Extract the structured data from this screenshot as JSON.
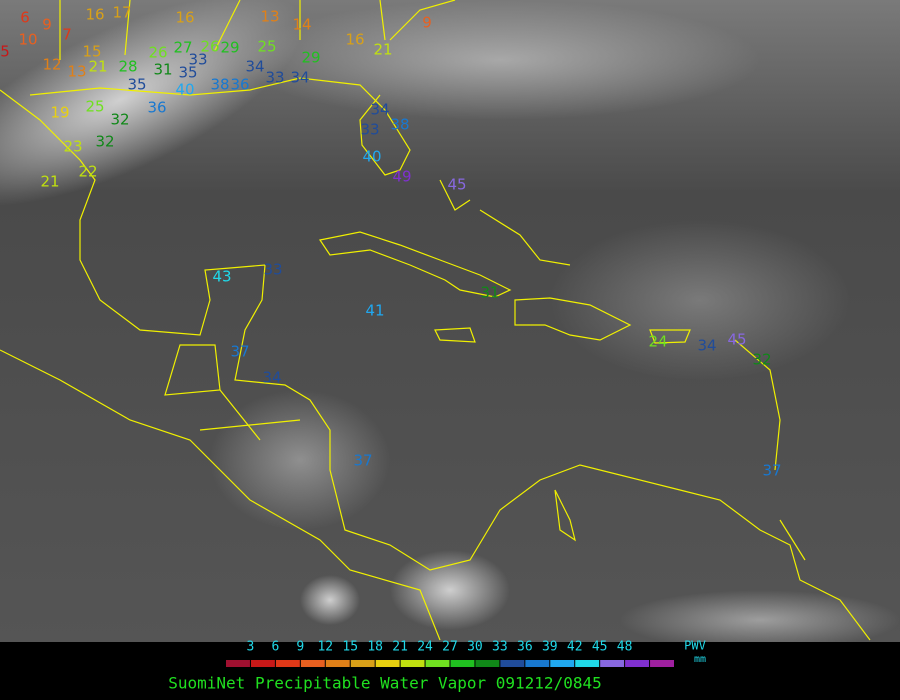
{
  "title": "SuomiNet Precipitable Water Vapor 091212/0845",
  "legend": {
    "label": "PWV",
    "unit": "mm",
    "ticks": [
      3,
      6,
      9,
      12,
      15,
      18,
      21,
      24,
      27,
      30,
      33,
      36,
      39,
      42,
      45,
      48
    ],
    "colors": [
      "#a01030",
      "#c81818",
      "#e03818",
      "#e86020",
      "#e08018",
      "#d8a018",
      "#e8d010",
      "#c0e010",
      "#70e020",
      "#20c020",
      "#108818",
      "#204c9a",
      "#1878d0",
      "#20a8f0",
      "#20d8e8",
      "#8868e0",
      "#8030d0",
      "#a020a0"
    ]
  },
  "stations": [
    6,
    16,
    17,
    16,
    13,
    14,
    9,
    5,
    10,
    9,
    7,
    15,
    12,
    13,
    21,
    28,
    26,
    27,
    26,
    29,
    25,
    29,
    16,
    21,
    33,
    31,
    35,
    34,
    33,
    34,
    35,
    40,
    38,
    36,
    19,
    25,
    32,
    23,
    32,
    21,
    22,
    36,
    34,
    38,
    33,
    40,
    49,
    45,
    43,
    33,
    41,
    31,
    24,
    34,
    45,
    32,
    37,
    34,
    37,
    37
  ]
}
